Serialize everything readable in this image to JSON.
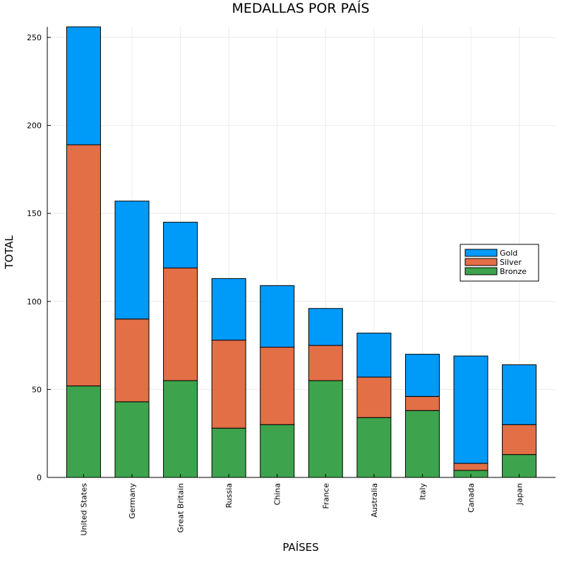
{
  "chart_data": {
    "type": "bar",
    "stacked": true,
    "title": "MEDALLAS POR PAÍS",
    "xlabel": "PAÍSES",
    "ylabel": "TOTAL",
    "ylim": [
      0,
      256
    ],
    "yticks": [
      0,
      50,
      100,
      150,
      200,
      250
    ],
    "grid": true,
    "legend_position": "right",
    "categories": [
      "United States",
      "Germany",
      "Great Britain",
      "Russia",
      "China",
      "France",
      "Australia",
      "Italy",
      "Canada",
      "Japan"
    ],
    "series": [
      {
        "name": "Bronze",
        "color": "#3da44d",
        "values": [
          52,
          43,
          55,
          28,
          30,
          55,
          34,
          38,
          4,
          13
        ]
      },
      {
        "name": "Silver",
        "color": "#e26f46",
        "values": [
          137,
          47,
          64,
          50,
          44,
          20,
          23,
          8,
          4,
          17
        ]
      },
      {
        "name": "Gold",
        "color": "#009af9",
        "values": [
          67,
          67,
          26,
          35,
          35,
          21,
          25,
          24,
          61,
          34
        ]
      }
    ],
    "legend_order": [
      "Gold",
      "Silver",
      "Bronze"
    ]
  }
}
